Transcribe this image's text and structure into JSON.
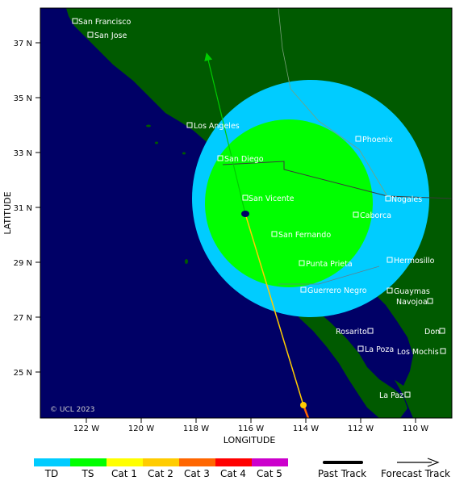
{
  "map": {
    "x_axis_title": "LONGITUDE",
    "y_axis_title": "LATITUDE",
    "x_ticks": [
      "122 W",
      "120 W",
      "118 W",
      "116 W",
      "114 W",
      "112 W",
      "110 W"
    ],
    "y_ticks": [
      "37 N",
      "35 N",
      "33 N",
      "31 N",
      "29 N",
      "27 N",
      "25 N"
    ],
    "copyright": "© UCL 2023"
  },
  "cities": [
    {
      "name": "San Francisco"
    },
    {
      "name": "San Jose"
    },
    {
      "name": "Los Angeles"
    },
    {
      "name": "San Diego"
    },
    {
      "name": "San Vicente"
    },
    {
      "name": "San Fernando"
    },
    {
      "name": "Punta Prieta"
    },
    {
      "name": "Guerrero Negro"
    },
    {
      "name": "Phoenix"
    },
    {
      "name": "Nogales"
    },
    {
      "name": "Caborca"
    },
    {
      "name": "Hermosillo"
    },
    {
      "name": "Guaymas"
    },
    {
      "name": "Navojoa"
    },
    {
      "name": "Rosarito"
    },
    {
      "name": "Don"
    },
    {
      "name": "La Poza"
    },
    {
      "name": "Los Mochis"
    },
    {
      "name": "La Paz"
    }
  ],
  "legend": {
    "categories": [
      {
        "label": "TD",
        "color": "#00ccff"
      },
      {
        "label": "TS",
        "color": "#00ff00"
      },
      {
        "label": "Cat 1",
        "color": "#ffff00"
      },
      {
        "label": "Cat 2",
        "color": "#ffcc00"
      },
      {
        "label": "Cat 3",
        "color": "#ff6600"
      },
      {
        "label": "Cat 4",
        "color": "#ff0000"
      },
      {
        "label": "Cat 5",
        "color": "#cc00cc"
      }
    ],
    "past_track_label": "Past Track",
    "forecast_track_label": "Forecast Track"
  },
  "colors": {
    "ocean": "#000066",
    "land": "#005a00",
    "ts_wind_field": "#00ff00",
    "td_wind_field": "#00ccff",
    "forecast_track": "#00cc00",
    "past_track_cat2": "#ffcc00",
    "past_track_cat3": "#ff6600"
  }
}
